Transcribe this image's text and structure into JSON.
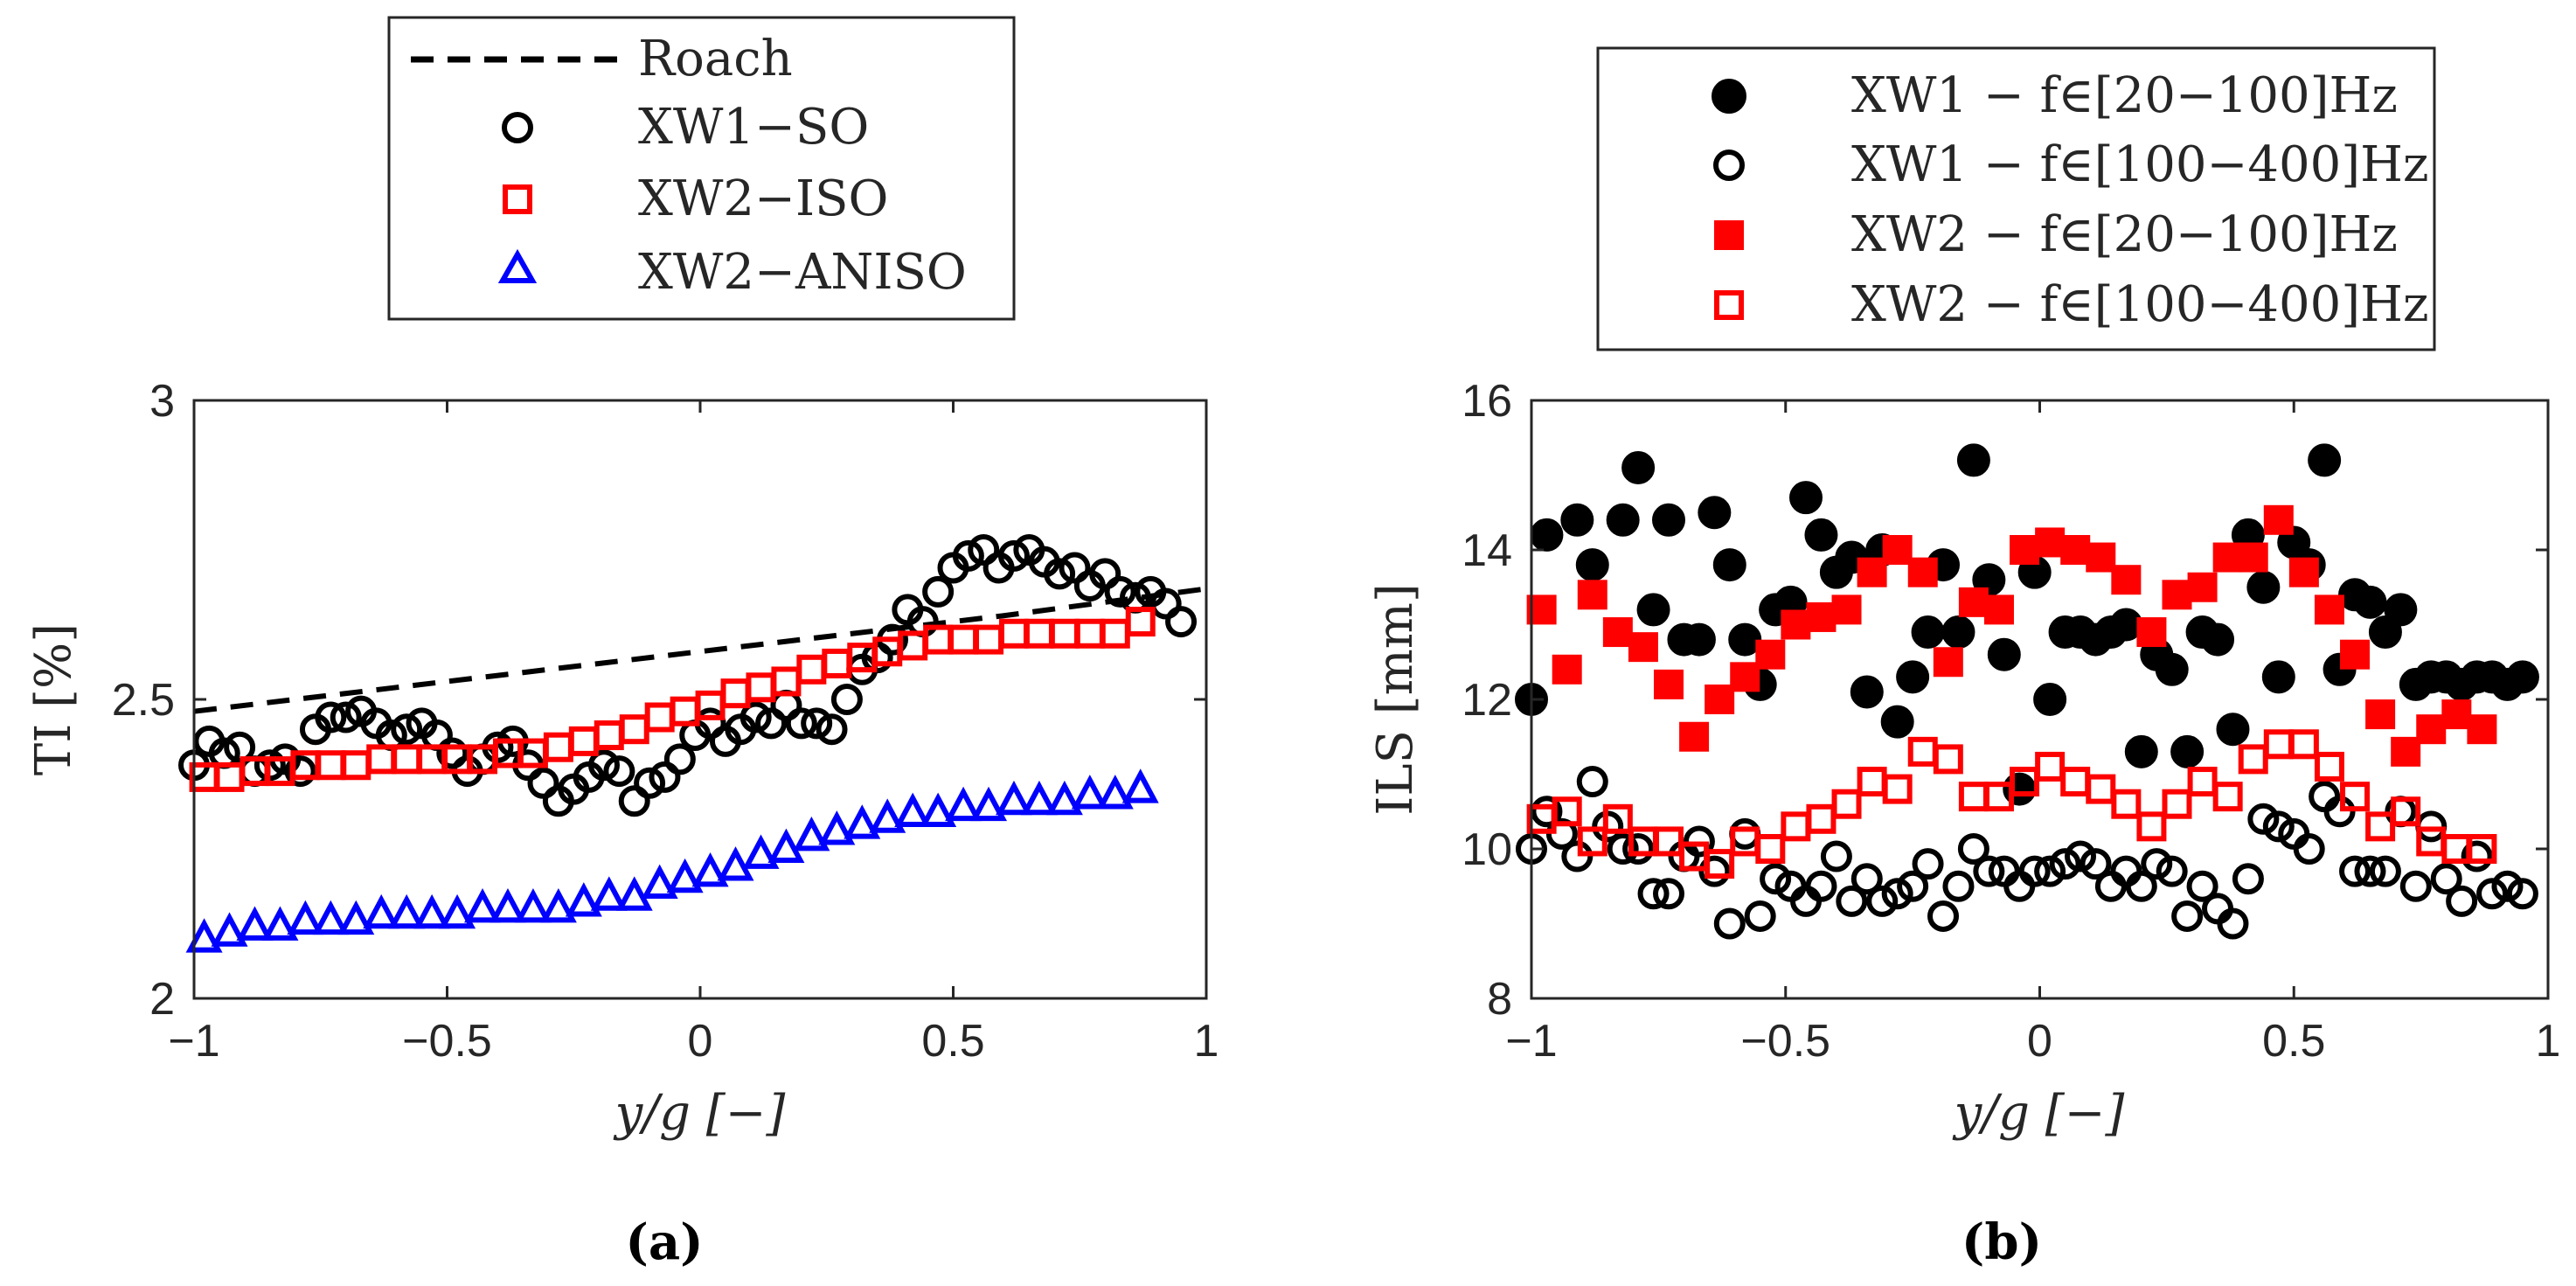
{
  "chart_data": [
    {
      "type": "scatter",
      "panel_label": "(a)",
      "xlabel": "y/g [−]",
      "ylabel": "TI [%]",
      "xlim": [
        -1,
        1
      ],
      "ylim": [
        2,
        3
      ],
      "xticks": [
        "−1",
        "−0.5",
        "0",
        "0.5",
        "1"
      ],
      "xtick_values": [
        -1,
        -0.5,
        0,
        0.5,
        1
      ],
      "yticks": [
        "2",
        "2.5",
        "3"
      ],
      "ytick_values": [
        2,
        2.5,
        3
      ],
      "legend_location": "top, outside",
      "series": [
        {
          "name": "Roach",
          "marker": "dashed-line",
          "color": "#000000",
          "x": [
            -1.0,
            -0.6,
            -0.2,
            0.2,
            0.6,
            1.0
          ],
          "y": [
            2.48,
            2.52,
            2.56,
            2.6,
            2.64,
            2.685
          ]
        },
        {
          "name": "XW1−SO",
          "marker": "circle-open",
          "color": "#000000",
          "x": [
            -1.0,
            -0.97,
            -0.94,
            -0.91,
            -0.88,
            -0.85,
            -0.82,
            -0.79,
            -0.76,
            -0.73,
            -0.7,
            -0.67,
            -0.64,
            -0.61,
            -0.58,
            -0.55,
            -0.52,
            -0.49,
            -0.46,
            -0.43,
            -0.4,
            -0.37,
            -0.34,
            -0.31,
            -0.28,
            -0.25,
            -0.22,
            -0.19,
            -0.16,
            -0.13,
            -0.1,
            -0.07,
            -0.04,
            -0.01,
            0.02,
            0.05,
            0.08,
            0.11,
            0.14,
            0.17,
            0.2,
            0.23,
            0.26,
            0.29,
            0.32,
            0.35,
            0.38,
            0.41,
            0.44,
            0.47,
            0.5,
            0.53,
            0.56,
            0.59,
            0.62,
            0.65,
            0.68,
            0.71,
            0.74,
            0.77,
            0.8,
            0.83,
            0.86,
            0.89,
            0.92,
            0.95
          ],
          "y": [
            2.39,
            2.43,
            2.41,
            2.42,
            2.38,
            2.39,
            2.4,
            2.38,
            2.45,
            2.47,
            2.47,
            2.48,
            2.46,
            2.44,
            2.45,
            2.46,
            2.44,
            2.41,
            2.38,
            2.4,
            2.42,
            2.43,
            2.39,
            2.36,
            2.33,
            2.35,
            2.37,
            2.39,
            2.38,
            2.33,
            2.36,
            2.37,
            2.4,
            2.44,
            2.46,
            2.43,
            2.45,
            2.47,
            2.46,
            2.49,
            2.46,
            2.46,
            2.45,
            2.5,
            2.55,
            2.57,
            2.6,
            2.65,
            2.63,
            2.68,
            2.72,
            2.74,
            2.75,
            2.72,
            2.74,
            2.75,
            2.73,
            2.71,
            2.72,
            2.69,
            2.71,
            2.68,
            2.67,
            2.68,
            2.66,
            2.63
          ]
        },
        {
          "name": "XW2−ISO",
          "marker": "square-open",
          "color": "#ff0000",
          "x": [
            -0.98,
            -0.93,
            -0.88,
            -0.83,
            -0.78,
            -0.73,
            -0.68,
            -0.63,
            -0.58,
            -0.53,
            -0.48,
            -0.43,
            -0.38,
            -0.33,
            -0.28,
            -0.23,
            -0.18,
            -0.13,
            -0.08,
            -0.03,
            0.02,
            0.07,
            0.12,
            0.17,
            0.22,
            0.27,
            0.32,
            0.37,
            0.42,
            0.47,
            0.52,
            0.57,
            0.62,
            0.67,
            0.72,
            0.77,
            0.82,
            0.87
          ],
          "y": [
            2.37,
            2.37,
            2.38,
            2.38,
            2.39,
            2.39,
            2.39,
            2.4,
            2.4,
            2.4,
            2.4,
            2.4,
            2.41,
            2.41,
            2.42,
            2.43,
            2.44,
            2.45,
            2.47,
            2.48,
            2.49,
            2.51,
            2.52,
            2.53,
            2.55,
            2.56,
            2.57,
            2.58,
            2.59,
            2.6,
            2.6,
            2.6,
            2.61,
            2.61,
            2.61,
            2.61,
            2.61,
            2.63
          ]
        },
        {
          "name": "XW2−ANISO",
          "marker": "triangle-open",
          "color": "#0000ff",
          "x": [
            -0.98,
            -0.93,
            -0.88,
            -0.83,
            -0.78,
            -0.73,
            -0.68,
            -0.63,
            -0.58,
            -0.53,
            -0.48,
            -0.43,
            -0.38,
            -0.33,
            -0.28,
            -0.23,
            -0.18,
            -0.13,
            -0.08,
            -0.03,
            0.02,
            0.07,
            0.12,
            0.17,
            0.22,
            0.27,
            0.32,
            0.37,
            0.42,
            0.47,
            0.52,
            0.57,
            0.62,
            0.67,
            0.72,
            0.77,
            0.82,
            0.87
          ],
          "y": [
            2.1,
            2.11,
            2.12,
            2.12,
            2.13,
            2.13,
            2.13,
            2.14,
            2.14,
            2.14,
            2.14,
            2.15,
            2.15,
            2.15,
            2.15,
            2.16,
            2.17,
            2.17,
            2.19,
            2.2,
            2.21,
            2.22,
            2.24,
            2.25,
            2.27,
            2.28,
            2.29,
            2.3,
            2.31,
            2.31,
            2.32,
            2.32,
            2.33,
            2.33,
            2.33,
            2.34,
            2.34,
            2.35
          ]
        }
      ]
    },
    {
      "type": "scatter",
      "panel_label": "(b)",
      "xlabel": "y/g [−]",
      "ylabel": "ILS [mm]",
      "xlim": [
        -1,
        1
      ],
      "ylim": [
        8,
        16
      ],
      "xticks": [
        "−1",
        "−0.5",
        "0",
        "0.5",
        "1"
      ],
      "xtick_values": [
        -1,
        -0.5,
        0,
        0.5,
        1
      ],
      "yticks": [
        "8",
        "10",
        "12",
        "14",
        "16"
      ],
      "ytick_values": [
        8,
        10,
        12,
        14,
        16
      ],
      "legend_location": "top, outside",
      "series": [
        {
          "name": "XW1 − f∈[20−100]Hz",
          "marker": "circle-filled",
          "color": "#000000",
          "x": [
            -1.0,
            -0.97,
            -0.91,
            -0.88,
            -0.82,
            -0.79,
            -0.76,
            -0.73,
            -0.7,
            -0.67,
            -0.64,
            -0.61,
            -0.58,
            -0.55,
            -0.52,
            -0.49,
            -0.46,
            -0.43,
            -0.4,
            -0.37,
            -0.34,
            -0.31,
            -0.28,
            -0.25,
            -0.22,
            -0.19,
            -0.16,
            -0.13,
            -0.1,
            -0.07,
            -0.04,
            -0.01,
            0.02,
            0.05,
            0.08,
            0.11,
            0.14,
            0.17,
            0.2,
            0.23,
            0.26,
            0.29,
            0.32,
            0.35,
            0.38,
            0.41,
            0.44,
            0.47,
            0.5,
            0.53,
            0.56,
            0.59,
            0.62,
            0.65,
            0.68,
            0.71,
            0.74,
            0.77,
            0.8,
            0.83,
            0.86,
            0.89,
            0.92,
            0.95
          ],
          "y": [
            12.0,
            14.2,
            14.4,
            13.8,
            14.4,
            15.1,
            13.2,
            14.4,
            12.8,
            12.8,
            14.5,
            13.8,
            12.8,
            12.2,
            13.2,
            13.3,
            14.7,
            14.2,
            13.7,
            13.9,
            12.1,
            14.0,
            11.7,
            12.3,
            12.9,
            13.8,
            12.9,
            15.2,
            13.6,
            12.6,
            10.8,
            13.7,
            12.0,
            12.9,
            12.9,
            12.8,
            12.9,
            13.0,
            11.3,
            12.6,
            12.4,
            11.3,
            12.9,
            12.8,
            11.6,
            14.2,
            13.5,
            12.3,
            14.1,
            13.8,
            15.2,
            12.4,
            13.4,
            13.3,
            12.9,
            13.2,
            12.2,
            12.3,
            12.3,
            12.2,
            12.3,
            12.3,
            12.2,
            12.3
          ]
        },
        {
          "name": "XW1 − f∈[100−400]Hz",
          "marker": "circle-open",
          "color": "#000000",
          "x": [
            -1.0,
            -0.97,
            -0.94,
            -0.91,
            -0.88,
            -0.85,
            -0.82,
            -0.79,
            -0.76,
            -0.73,
            -0.7,
            -0.67,
            -0.64,
            -0.61,
            -0.58,
            -0.55,
            -0.52,
            -0.49,
            -0.46,
            -0.43,
            -0.4,
            -0.37,
            -0.34,
            -0.31,
            -0.28,
            -0.25,
            -0.22,
            -0.19,
            -0.16,
            -0.13,
            -0.1,
            -0.07,
            -0.04,
            -0.01,
            0.02,
            0.05,
            0.08,
            0.11,
            0.14,
            0.17,
            0.2,
            0.23,
            0.26,
            0.29,
            0.32,
            0.35,
            0.38,
            0.41,
            0.44,
            0.47,
            0.5,
            0.53,
            0.56,
            0.59,
            0.62,
            0.65,
            0.68,
            0.71,
            0.74,
            0.77,
            0.8,
            0.83,
            0.86,
            0.89,
            0.92,
            0.95
          ],
          "y": [
            10.0,
            10.5,
            10.2,
            9.9,
            10.9,
            10.3,
            10.0,
            10.0,
            9.4,
            9.4,
            9.9,
            10.1,
            9.7,
            9.0,
            10.2,
            9.1,
            9.6,
            9.5,
            9.3,
            9.5,
            9.9,
            9.3,
            9.6,
            9.3,
            9.4,
            9.5,
            9.8,
            9.1,
            9.5,
            10.0,
            9.7,
            9.7,
            9.5,
            9.7,
            9.7,
            9.8,
            9.9,
            9.8,
            9.5,
            9.7,
            9.5,
            9.8,
            9.7,
            9.1,
            9.5,
            9.2,
            9.0,
            9.6,
            10.4,
            10.3,
            10.2,
            10.0,
            10.7,
            10.5,
            9.7,
            9.7,
            9.7,
            10.5,
            9.5,
            10.3,
            9.6,
            9.3,
            9.9,
            9.4,
            9.5,
            9.4
          ]
        },
        {
          "name": "XW2 − f∈[20−100]Hz",
          "marker": "square-filled",
          "color": "#ff0000",
          "x": [
            -0.98,
            -0.93,
            -0.88,
            -0.83,
            -0.78,
            -0.73,
            -0.68,
            -0.63,
            -0.58,
            -0.53,
            -0.48,
            -0.43,
            -0.38,
            -0.33,
            -0.28,
            -0.23,
            -0.18,
            -0.13,
            -0.08,
            -0.03,
            0.02,
            0.07,
            0.12,
            0.17,
            0.22,
            0.27,
            0.32,
            0.37,
            0.42,
            0.47,
            0.52,
            0.57,
            0.62,
            0.67,
            0.72,
            0.77,
            0.82,
            0.87
          ],
          "y": [
            13.2,
            12.4,
            13.4,
            12.9,
            12.7,
            12.2,
            11.5,
            12.0,
            12.3,
            12.6,
            13.0,
            13.1,
            13.2,
            13.7,
            14.0,
            13.7,
            12.5,
            13.3,
            13.2,
            14.0,
            14.1,
            14.0,
            13.9,
            13.6,
            12.9,
            13.4,
            13.5,
            13.9,
            13.9,
            14.4,
            13.7,
            13.2,
            12.6,
            11.8,
            11.3,
            11.6,
            11.8,
            11.6
          ]
        },
        {
          "name": "XW2 − f∈[100−400]Hz",
          "marker": "square-open",
          "color": "#ff0000",
          "x": [
            -0.98,
            -0.93,
            -0.88,
            -0.83,
            -0.78,
            -0.73,
            -0.68,
            -0.63,
            -0.58,
            -0.53,
            -0.48,
            -0.43,
            -0.38,
            -0.33,
            -0.28,
            -0.23,
            -0.18,
            -0.13,
            -0.08,
            -0.03,
            0.02,
            0.07,
            0.12,
            0.17,
            0.22,
            0.27,
            0.32,
            0.37,
            0.42,
            0.47,
            0.52,
            0.57,
            0.62,
            0.67,
            0.72,
            0.77,
            0.82,
            0.87
          ],
          "y": [
            10.4,
            10.5,
            10.1,
            10.4,
            10.1,
            10.1,
            9.9,
            9.8,
            10.1,
            10.0,
            10.3,
            10.4,
            10.6,
            10.9,
            10.8,
            11.3,
            11.2,
            10.7,
            10.7,
            10.9,
            11.1,
            10.9,
            10.8,
            10.6,
            10.3,
            10.6,
            10.9,
            10.7,
            11.2,
            11.4,
            11.4,
            11.1,
            10.7,
            10.3,
            10.5,
            10.1,
            10.0,
            10.0
          ]
        }
      ]
    }
  ]
}
